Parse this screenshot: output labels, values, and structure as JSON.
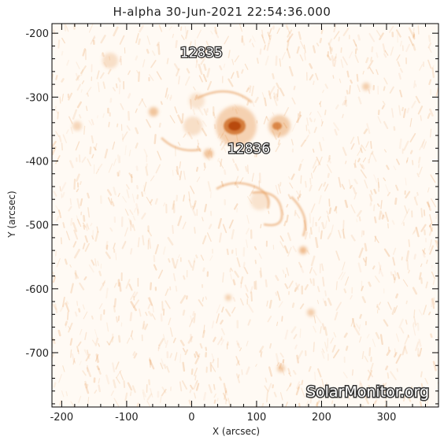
{
  "title": "H-alpha 30-Jun-2021 22:54:36.000",
  "axes": {
    "xlabel": "X (arcsec)",
    "ylabel": "Y (arcsec)",
    "xrange": [
      -215,
      380
    ],
    "yrange": [
      -785,
      -185
    ],
    "xticks": [
      -200,
      -100,
      0,
      100,
      200,
      300
    ],
    "yticks": [
      -200,
      -300,
      -400,
      -500,
      -600,
      -700
    ],
    "xtick_labels": [
      "-200",
      "-100",
      "0",
      "100",
      "200",
      "300"
    ],
    "ytick_labels": [
      "-200",
      "-300",
      "-400",
      "-500",
      "-600",
      "-700"
    ]
  },
  "regions": [
    {
      "label": "12835",
      "x": 15,
      "y": -230
    },
    {
      "label": "12836",
      "x": 88,
      "y": -380
    }
  ],
  "watermark": "SolarMonitor.org",
  "colors": {
    "plage": "#e8a060",
    "core": "#b84a08",
    "background": "#fff6ec",
    "axis": "#000000"
  }
}
